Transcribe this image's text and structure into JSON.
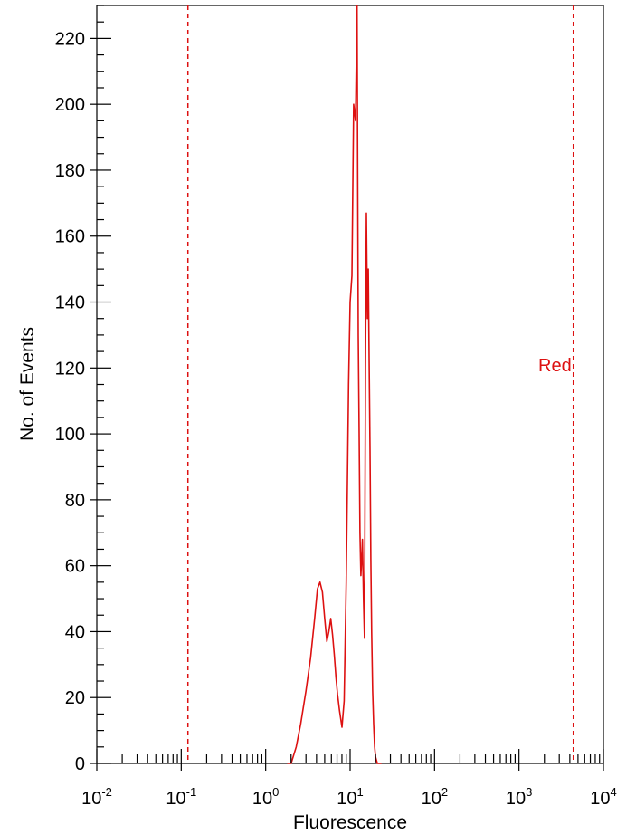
{
  "chart_data": {
    "type": "line",
    "title": "",
    "xlabel": "Fluorescence",
    "ylabel": "No. of Events",
    "xscale": "log",
    "xlim": [
      0.01,
      10000
    ],
    "ylim": [
      0,
      230
    ],
    "grid": false,
    "line_color": "#dd1111",
    "x_ticks": [
      {
        "base": "10",
        "exp": "-2",
        "value": 0.01
      },
      {
        "base": "10",
        "exp": "-1",
        "value": 0.1
      },
      {
        "base": "10",
        "exp": "0",
        "value": 1
      },
      {
        "base": "10",
        "exp": "1",
        "value": 10
      },
      {
        "base": "10",
        "exp": "2",
        "value": 100
      },
      {
        "base": "10",
        "exp": "3",
        "value": 1000
      },
      {
        "base": "10",
        "exp": "4",
        "value": 10000
      }
    ],
    "y_ticks": [
      "0",
      "20",
      "40",
      "60",
      "80",
      "100",
      "120",
      "140",
      "160",
      "180",
      "200",
      "220"
    ],
    "markers": [
      {
        "x": 0.12,
        "label": "",
        "color": "#dd1111",
        "style": "dashed"
      },
      {
        "x": 4400,
        "label": "Red",
        "color": "#dd1111",
        "style": "dashed"
      }
    ],
    "series": [
      {
        "x": [
          1.8,
          2.0,
          2.3,
          2.6,
          3.0,
          3.4,
          3.8,
          4.1,
          4.4,
          4.7,
          5.0,
          5.3,
          5.6,
          5.9,
          6.2,
          6.5,
          6.8,
          7.1,
          7.5,
          8.0,
          8.5,
          9.0,
          9.6,
          10.0,
          10.5,
          11.0,
          11.6,
          12.1,
          12.5,
          12.8,
          13.1,
          13.4,
          13.7,
          14.0,
          14.4,
          14.8,
          15.2,
          15.6,
          16.0,
          16.4,
          16.8,
          17.2,
          17.6,
          18.0,
          18.5,
          19.0,
          19.5,
          20.0,
          21.0,
          22.0,
          23.5
        ],
        "y": [
          0,
          0,
          5,
          12,
          22,
          32,
          44,
          53,
          55,
          52,
          44,
          37,
          40,
          44,
          39,
          33,
          26,
          21,
          16,
          11,
          19,
          55,
          115,
          140,
          148,
          200,
          195,
          230,
          130,
          100,
          70,
          57,
          62,
          68,
          50,
          38,
          120,
          167,
          135,
          150,
          123,
          95,
          62,
          40,
          22,
          12,
          5,
          2,
          0,
          0,
          0
        ]
      }
    ]
  }
}
